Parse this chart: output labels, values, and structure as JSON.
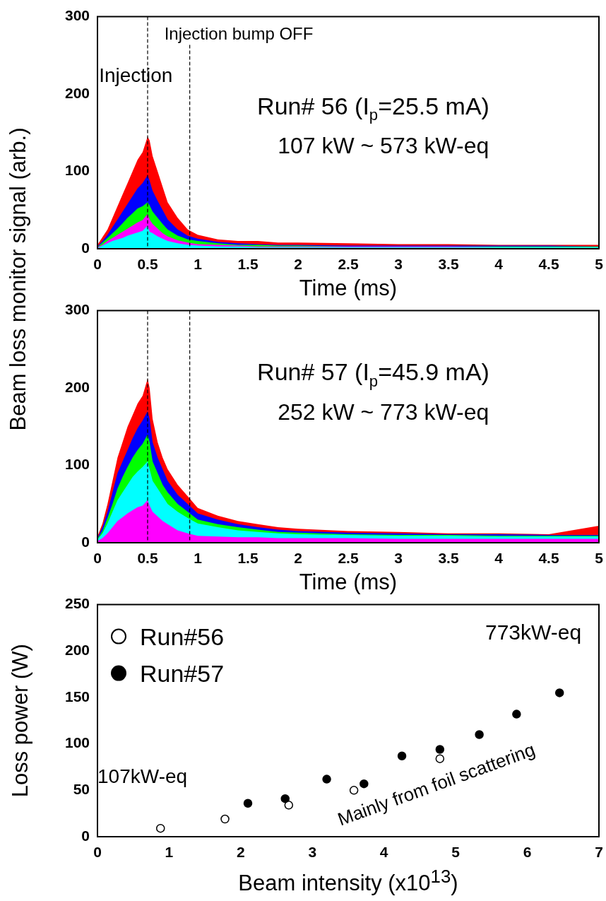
{
  "chart_data": [
    {
      "type": "area",
      "xlabel": "Time (ms)",
      "ylabel": "Beam loss monitor signal (arb.)",
      "xlim": [
        0,
        5
      ],
      "ylim": [
        0,
        300
      ],
      "xticks": [
        0,
        0.5,
        1,
        1.5,
        2,
        2.5,
        3,
        3.5,
        4,
        4.5,
        5
      ],
      "yticks": [
        0,
        100,
        200,
        300
      ],
      "grid": false,
      "legend": false,
      "x": [
        0,
        0.05,
        0.1,
        0.15,
        0.2,
        0.25,
        0.3,
        0.35,
        0.4,
        0.45,
        0.5,
        0.52,
        0.55,
        0.6,
        0.65,
        0.7,
        0.8,
        0.9,
        1.0,
        1.2,
        1.4,
        1.6,
        1.8,
        2.0,
        2.5,
        3.0,
        3.5,
        4.0,
        4.5,
        5.0
      ],
      "series": [
        {
          "color": "#ff0000",
          "values": [
            5,
            15,
            25,
            40,
            55,
            70,
            85,
            100,
            115,
            125,
            145,
            140,
            120,
            100,
            80,
            60,
            40,
            25,
            18,
            12,
            10,
            10,
            8,
            8,
            7,
            6,
            6,
            5,
            5,
            5
          ]
        },
        {
          "color": "#0000ff",
          "values": [
            3,
            10,
            18,
            28,
            38,
            48,
            58,
            68,
            78,
            85,
            95,
            88,
            75,
            62,
            50,
            38,
            25,
            17,
            13,
            9,
            7,
            6,
            5,
            5,
            4,
            4,
            4,
            4,
            4,
            3
          ]
        },
        {
          "color": "#00ff00",
          "values": [
            2,
            8,
            14,
            20,
            26,
            33,
            40,
            46,
            52,
            55,
            60,
            56,
            48,
            40,
            32,
            25,
            17,
            12,
            10,
            7,
            5,
            5,
            4,
            4,
            3,
            3,
            3,
            3,
            3,
            3
          ]
        },
        {
          "color": "#ff00ff",
          "values": [
            2,
            5,
            10,
            14,
            18,
            22,
            26,
            30,
            34,
            37,
            45,
            38,
            32,
            26,
            20,
            16,
            11,
            8,
            6,
            5,
            4,
            3,
            3,
            3,
            3,
            3,
            3,
            2,
            2,
            2
          ]
        },
        {
          "color": "#00ffff",
          "values": [
            1,
            4,
            7,
            10,
            12,
            14,
            17,
            19,
            21,
            23,
            30,
            22,
            20,
            16,
            13,
            10,
            7,
            5,
            4,
            3,
            3,
            2,
            2,
            2,
            2,
            2,
            2,
            2,
            2,
            2
          ]
        }
      ],
      "ref_lines": [
        {
          "axis": "x",
          "value": 0.5,
          "line_style": "dashed"
        },
        {
          "axis": "x",
          "value": 0.92,
          "label": "Injection bump OFF",
          "line_style": "dashed"
        }
      ],
      "annotations": [
        "Injection",
        "Run# 56 (I$_{p}$=25.5 mA)",
        "107 kW ~ 573 kW-eq"
      ]
    },
    {
      "type": "area",
      "xlabel": "Time (ms)",
      "xlim": [
        0,
        5
      ],
      "ylim": [
        0,
        300
      ],
      "xticks": [
        0,
        0.5,
        1,
        1.5,
        2,
        2.5,
        3,
        3.5,
        4,
        4.5,
        5
      ],
      "yticks": [
        0,
        100,
        200,
        300
      ],
      "grid": false,
      "legend": false,
      "x": [
        0,
        0.05,
        0.1,
        0.15,
        0.2,
        0.25,
        0.3,
        0.35,
        0.4,
        0.45,
        0.5,
        0.52,
        0.55,
        0.6,
        0.65,
        0.7,
        0.8,
        0.9,
        1.0,
        1.2,
        1.4,
        1.6,
        1.8,
        2.0,
        2.5,
        3.0,
        3.5,
        4.0,
        4.5,
        5.0
      ],
      "series": [
        {
          "color": "#ff0000",
          "values": [
            8,
            25,
            50,
            80,
            110,
            130,
            150,
            165,
            180,
            190,
            212,
            200,
            160,
            130,
            110,
            95,
            75,
            60,
            45,
            35,
            28,
            24,
            20,
            18,
            15,
            14,
            12,
            12,
            11,
            22
          ]
        },
        {
          "color": "#0000ff",
          "values": [
            6,
            20,
            40,
            65,
            90,
            105,
            120,
            135,
            148,
            158,
            170,
            160,
            130,
            110,
            95,
            80,
            62,
            50,
            38,
            30,
            24,
            20,
            17,
            15,
            13,
            12,
            11,
            11,
            10,
            10
          ]
        },
        {
          "color": "#00ff00",
          "values": [
            5,
            15,
            32,
            50,
            70,
            85,
            98,
            110,
            120,
            128,
            140,
            130,
            105,
            90,
            75,
            65,
            50,
            40,
            30,
            24,
            20,
            17,
            14,
            13,
            11,
            10,
            10,
            9,
            9,
            9
          ]
        },
        {
          "color": "#00ffff",
          "values": [
            4,
            12,
            25,
            40,
            55,
            65,
            75,
            85,
            92,
            98,
            105,
            95,
            80,
            70,
            60,
            50,
            40,
            32,
            25,
            20,
            16,
            14,
            12,
            11,
            10,
            9,
            9,
            8,
            8,
            8
          ]
        },
        {
          "color": "#ff00ff",
          "values": [
            2,
            6,
            12,
            20,
            28,
            33,
            38,
            42,
            46,
            48,
            55,
            48,
            40,
            34,
            28,
            24,
            16,
            12,
            9,
            8,
            7,
            7,
            6,
            6,
            6,
            5,
            5,
            5,
            5,
            5
          ]
        }
      ],
      "ref_lines": [
        {
          "axis": "x",
          "value": 0.5,
          "line_style": "dashed"
        },
        {
          "axis": "x",
          "value": 0.92,
          "line_style": "dashed"
        }
      ],
      "annotations": [
        "Run# 57 (I$_{p}$=45.9 mA)",
        "252 kW ~ 773 kW-eq"
      ]
    },
    {
      "type": "scatter",
      "xlabel": "Beam intensity (x10$^{13}$)",
      "ylabel": "Loss power (W)",
      "xlim": [
        0,
        7
      ],
      "ylim": [
        0,
        250
      ],
      "xticks": [
        0,
        1,
        2,
        3,
        4,
        5,
        6,
        7
      ],
      "yticks": [
        0,
        50,
        100,
        150,
        200,
        250
      ],
      "grid": false,
      "legend": "top left",
      "marker": "circle",
      "series": [
        {
          "name": "Run#56",
          "color": "#ffffff",
          "x": [
            0.88,
            1.78,
            2.67,
            3.58,
            4.78
          ],
          "values": [
            9,
            19,
            34,
            50,
            84
          ]
        },
        {
          "name": "Run#57",
          "color": "#000000",
          "x": [
            2.1,
            2.62,
            3.2,
            3.72,
            4.25,
            4.78,
            5.33,
            5.85,
            6.45
          ],
          "values": [
            36,
            41,
            62,
            57,
            87,
            94,
            110,
            132,
            155
          ]
        }
      ],
      "annotations": [
        "773kW-eq",
        "107kW-eq",
        "Mainly from foil scattering"
      ]
    }
  ]
}
